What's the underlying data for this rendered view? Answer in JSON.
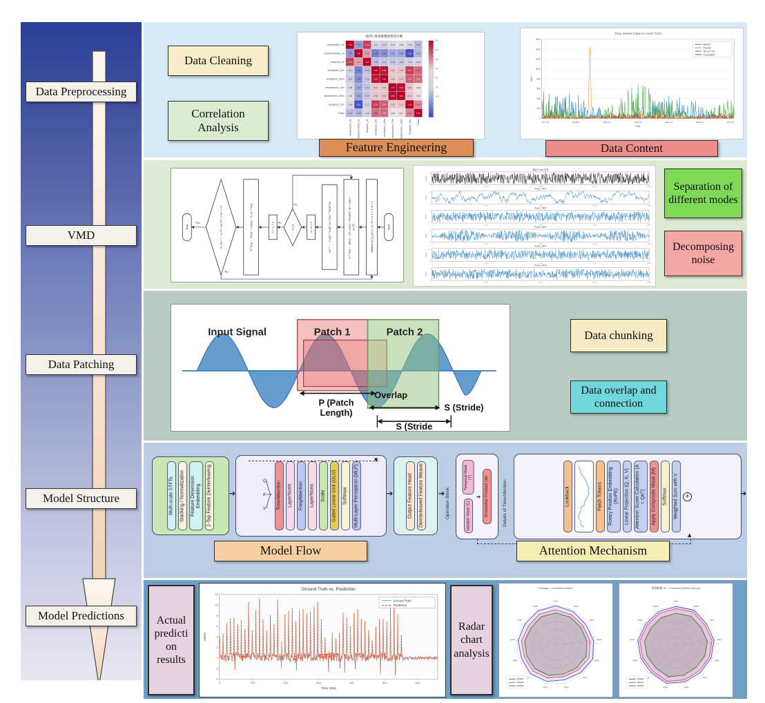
{
  "palette": {
    "row1": "#d7e9f4",
    "row2": "#dde9d2",
    "row3": "#b7cbc2",
    "row4": "#bccee6",
    "row5": "#6f9ec6",
    "cleaning": "#f8edca",
    "correlation": "#daecd2",
    "feature": "#dd8e56",
    "content": "#ee8e8a",
    "separation": "#7ed957",
    "decomposing": "#f3a6a2",
    "chunking": "#f5ecc4",
    "overlap": "#70d7dc",
    "flow_label": "#f8cfa0",
    "attention_label": "#f5eeb4",
    "actual": "#e6d2e0",
    "radar_label": "#e6d2e0",
    "arrow_fill_top": "#fdf7f0",
    "arrow_fill_bottom": "#f6d3ba"
  },
  "sidebar": {
    "stages": [
      "Data Preprocessing",
      "VMD",
      "Data Patching",
      "Model Structure",
      "Model Predictions"
    ]
  },
  "rows": {
    "r1": {
      "cleaning": "Data Cleaning",
      "correlation": "Correlation Analysis",
      "feature": "Feature Engineering",
      "content": "Data Content"
    },
    "r2": {
      "separation": "Separation of different modes",
      "decomposing": "Decomposing noise"
    },
    "r3": {
      "chunking": "Data chunking",
      "overlap": "Data overlap and connection"
    },
    "r4": {
      "flow_label": "Model Flow",
      "attention_label": "Attention Mechanism",
      "operation_label": "Operation Block",
      "details_label": "Details of TimeAttention"
    },
    "r5": {
      "actual": "Actual predicti on results",
      "radar_label": "Radar chart analysis"
    }
  },
  "patch_diagram": {
    "labels": {
      "input_signal": "Input Signal",
      "patch1": "Patch 1",
      "patch2": "Patch 2",
      "overlap": "Overlap",
      "p_len_1": "P (Patch",
      "p_len_2": "Length)",
      "stride_right": "S (Stride)",
      "stride_bottom": "S (Stride"
    },
    "colors": {
      "wave": "#2e75b6",
      "wave_fill": "rgba(62,133,198,0.8)",
      "patch1": "#b85450",
      "patch1_fill": "rgba(228,104,104,0.42)",
      "patch2": "#6a9955",
      "patch2_fill": "rgba(147,196,125,0.5)"
    }
  },
  "vmd_flowchart": {
    "nodes": [
      {
        "shape": "stadium",
        "text": "Start"
      },
      {
        "shape": "rect",
        "text": "Initialize {û¹ₖ}, {ω¹ₖ} = 0, λ̂¹ = 0, n = 1, k = 1"
      },
      {
        "shape": "rect",
        "text": "ûₖⁿ⁺¹(ω) ← [x̂(ω) − Σᵢ≠ₖ ûᵢ(ω) + λ̂ⁿ(ω)/2] / [1 + 2α(ω − ωₖⁿ)²]"
      },
      {
        "shape": "rect",
        "text": "ωₖⁿ⁺¹ ← ∫ ω|ûₖⁿ⁺¹(ω)|² dω / ∫ |ûₖⁿ⁺¹(ω)|² dω"
      },
      {
        "shape": "rect",
        "text": "k = k + 1"
      },
      {
        "shape": "diamond",
        "text": "k ≤ K"
      },
      {
        "shape": "rect",
        "text": "n = n + 1"
      },
      {
        "shape": "rect",
        "text": "λ̂ⁿ⁺¹(ω) ← λ̂ⁿ(ω) + τ (x̂(ω) − Σₖ ûₖⁿ⁺¹(ω))"
      },
      {
        "shape": "diamond",
        "text": "Σₖ ‖ûₖⁿ⁺¹ − ûₖⁿ‖² / ‖ûₖⁿ‖² < ε  &  n > N"
      },
      {
        "shape": "stadium",
        "text": "Stop"
      }
    ],
    "yes_label": "Yes",
    "no_label": "No"
  },
  "model_structure": {
    "stft_group": {
      "bg": "#c9e7b5",
      "boxes": [
        {
          "t": "Multi-scale STFTs",
          "bg": "#cdf2f0"
        },
        {
          "t": "Stacking / Normalization",
          "bg": "#f8f4da"
        },
        {
          "t": "Feature Dimension Embedding",
          "bg": "#cdf2f0"
        },
        {
          "t": "2-Tap Feature Deinterleaving",
          "bg": "#f8f4da"
        }
      ]
    },
    "attn_group": {
      "bg": "#efedfc",
      "qkv": [
        "Q",
        "K",
        "V"
      ],
      "boxes": [
        {
          "t": "TimeAttention",
          "bg": "#f2918c"
        },
        {
          "t": "LayerNorm",
          "bg": "#f8d9e8"
        },
        {
          "t": "FreqAttention",
          "bg": "#b9c8ee"
        },
        {
          "t": "LayerNorm",
          "bg": "#f8d9e8"
        },
        {
          "t": "Scale",
          "bg": "#c8e8a8"
        },
        {
          "t": "Gated Linear Unit (GLU)",
          "bg": "#e3cf4e"
        },
        {
          "t": "Softmax",
          "bg": "#f6f2d0"
        },
        {
          "t": "Multi-Layer Perceptron (MLP)",
          "bg": "#b9c3ea"
        }
      ]
    },
    "output_group": {
      "bg": "#d9f3ee",
      "boxes": [
        {
          "t": "Output Feature Head",
          "bg": "#fbe7d0"
        },
        {
          "t": "Deinterleaved Feature Weave",
          "bg": "#fbe7d0"
        }
      ]
    },
    "mask_group": {
      "bg": "#f4f2fd",
      "masks": [
        {
          "t": "Temporal Mask (T)",
          "bg": "#f3b8d2"
        },
        {
          "t": "Variable Mask (C)",
          "bg": "#f3b8d2"
        }
      ],
      "kron": {
        "t": "Kronecker Product (⊗)",
        "bg": "#f2918c"
      }
    },
    "ta_group": {
      "bg": "#f4f2fd",
      "boxes": [
        {
          "t": "Lookback",
          "bg": "#f5c08a"
        },
        {
          "t": "",
          "bg": "#ffffff",
          "chart": true
        },
        {
          "t": "Patch Tokens",
          "bg": "#f5c08a"
        },
        {
          "t": "Rotary Position Embedding (RoPE)",
          "bg": "#c3cff0"
        },
        {
          "t": "Linear Projection (Q, K, V)",
          "bg": "#c3cff0"
        },
        {
          "t": "Attention Score Calculation (A = QKᵀ)",
          "bg": "#c3cff0"
        },
        {
          "t": "Apply Composite Mask (M)",
          "bg": "#f2918c"
        },
        {
          "t": "Softmax",
          "bg": "#f6f2d0"
        },
        {
          "t": "Weighted Sum with V",
          "bg": "#c3cff0"
        }
      ]
    }
  },
  "chart_data": [
    {
      "id": "correlation-heatmap",
      "type": "heatmap",
      "title": "站点1 各因素相关性热力图",
      "labels": [
        "temperature_2m",
        "relativehumidity_2m",
        "dewpoint_2m",
        "windspeed_10m",
        "windspeed_100m",
        "winddirection_10m",
        "winddirection_100m",
        "windgusts_10m",
        "Power"
      ],
      "matrix": [
        [
          1.0,
          -0.34,
          0.73,
          -0.11,
          -0.13,
          -0.08,
          -0.06,
          -0.09,
          -0.21
        ],
        [
          -0.34,
          1.0,
          0.33,
          -0.43,
          -0.38,
          -0.28,
          -0.29,
          -0.62,
          -0.22
        ],
        [
          0.73,
          0.33,
          1.0,
          -0.19,
          -0.16,
          -0.16,
          -0.16,
          -0.12,
          -0.1
        ],
        [
          -0.11,
          -0.43,
          -0.19,
          1.0,
          0.93,
          0.17,
          0.18,
          0.74,
          0.55
        ],
        [
          -0.13,
          -0.38,
          -0.16,
          0.93,
          1.0,
          0.16,
          0.18,
          0.62,
          0.56
        ],
        [
          -0.08,
          -0.28,
          -0.16,
          0.17,
          0.16,
          1.0,
          0.95,
          0.16,
          0.06
        ],
        [
          -0.06,
          -0.29,
          -0.16,
          0.18,
          0.18,
          0.95,
          1.0,
          0.17,
          0.07
        ],
        [
          -0.09,
          -0.62,
          -0.12,
          0.74,
          0.62,
          0.16,
          0.17,
          1.0,
          0.44
        ],
        [
          -0.21,
          -0.22,
          -0.1,
          0.55,
          0.56,
          0.06,
          0.07,
          0.44,
          1.0
        ]
      ],
      "colorbar_ticks": [
        1.0,
        0.8,
        0.6,
        0.4,
        0.2,
        0.0,
        -0.2
      ],
      "colormap": {
        "low": "#3b4cc0",
        "mid": "#f1ecec",
        "high": "#b40426",
        "domain": [
          -0.65,
          1
        ]
      }
    },
    {
      "id": "tso-timeseries",
      "type": "line",
      "title": "Time Series Data for each TSO",
      "xlabel": "Date",
      "ylabel": "Value",
      "x_ticks": [
        "2017-01",
        "2018-01",
        "2019-01",
        "2020-01",
        "2021-01",
        "2022-01",
        "2023-01"
      ],
      "y_ticks": [
        0,
        200,
        400,
        600,
        800,
        1000,
        1200,
        1400,
        1600
      ],
      "y_max": 1600,
      "series": [
        {
          "name": "50Hertz",
          "color": "#1f77b4",
          "peak": 520,
          "spike_at": null,
          "spike_h": 0
        },
        {
          "name": "Amprion",
          "color": "#ff7f0e",
          "peak": 170,
          "spike_at": 105,
          "spike_h": 1450
        },
        {
          "name": "TenneTTSO",
          "color": "#2ca02c",
          "peak": 690,
          "spike_at": null,
          "spike_h": 0
        },
        {
          "name": "TransnetBW",
          "color": "#d62728",
          "peak": 130,
          "spike_at": null,
          "spike_h": 0
        }
      ]
    },
    {
      "id": "vmd-decomposition",
      "type": "line",
      "x_ticks": [
        0,
        10000,
        20000,
        30000,
        40000
      ],
      "subplots": [
        {
          "title": "原始 Power 信号",
          "ylabel": "Power",
          "color": "#000000",
          "style": "dense"
        },
        {
          "title": "Power_IMF1",
          "ylabel": "IMF1",
          "color": "#1f77b4",
          "style": "smooth"
        },
        {
          "title": "Power_IMF2",
          "ylabel": "IMF2",
          "color": "#1f77b4",
          "style": "noise"
        },
        {
          "title": "Power_IMF3",
          "ylabel": "IMF3",
          "color": "#1f77b4",
          "style": "burst"
        },
        {
          "title": "Power_IMF4",
          "ylabel": "IMF4",
          "color": "#1f77b4",
          "style": "noise"
        },
        {
          "title": "Power_IMF5",
          "ylabel": "IMF5",
          "color": "#1f77b4",
          "style": "noise"
        }
      ]
    },
    {
      "id": "prediction-chart",
      "type": "line",
      "title": "Ground Truth vs. Prediction",
      "xlabel": "Time Step",
      "ylabel": "Value",
      "x_ticks": [
        0,
        100,
        200,
        300,
        400,
        500,
        600
      ],
      "x_max": 660,
      "y_ticks": [
        -4,
        -2,
        0,
        2,
        4,
        6,
        8,
        10,
        12
      ],
      "y_min": -4,
      "y_max": 12,
      "series": [
        {
          "name": "Ground Truth",
          "color": "#74b3e3",
          "style": "solid"
        },
        {
          "name": "Prediction",
          "color": "#ff5a1e",
          "style": "dashed"
        }
      ],
      "note": "spiky periodic series up to step ~560, then flat near 0"
    },
    {
      "id": "radar-average",
      "type": "radar",
      "title": "Average - Combined Metrics",
      "axes": 13,
      "rings": [
        0.2,
        0.4,
        0.6,
        0.8,
        1.0
      ],
      "series": [
        {
          "color": "#5555dd",
          "fill": "rgba(110,110,235,0.15)",
          "values": [
            0.99,
            0.95,
            0.92,
            0.96,
            1.0,
            0.94,
            0.91,
            0.95,
            0.97,
            0.93,
            0.96,
            0.94,
            0.97
          ]
        },
        {
          "color": "#dd5566",
          "fill": "rgba(225,120,150,0.22)",
          "values": [
            0.89,
            0.86,
            0.84,
            0.87,
            0.9,
            0.85,
            0.83,
            0.86,
            0.88,
            0.85,
            0.87,
            0.84,
            0.88
          ]
        },
        {
          "color": "#448844",
          "fill": "rgba(150,150,150,0.38)",
          "values": [
            0.81,
            0.79,
            0.77,
            0.79,
            0.82,
            0.78,
            0.76,
            0.79,
            0.8,
            0.78,
            0.79,
            0.76,
            0.8
          ]
        }
      ]
    },
    {
      "id": "radar-zoom",
      "type": "radar",
      "title": "预测结果 #2 - Combined Metrics (Zoom)",
      "axes": 13,
      "rings": [
        0.2,
        0.4,
        0.6,
        0.8,
        1.0
      ],
      "series": [
        {
          "color": "#5555dd",
          "fill": "rgba(110,110,235,0.15)",
          "values": [
            0.97,
            0.99,
            0.94,
            0.97,
            0.95,
            0.93,
            0.96,
            1.0,
            0.94,
            0.95,
            0.97,
            0.93,
            0.95
          ]
        },
        {
          "color": "#dd5566",
          "fill": "rgba(225,120,150,0.28)",
          "values": [
            0.92,
            0.94,
            0.89,
            0.92,
            0.9,
            0.88,
            0.91,
            0.95,
            0.89,
            0.9,
            0.92,
            0.88,
            0.9
          ]
        },
        {
          "color": "#448844",
          "fill": "rgba(150,150,150,0.38)",
          "values": [
            0.8,
            0.82,
            0.77,
            0.8,
            0.78,
            0.76,
            0.79,
            0.83,
            0.77,
            0.78,
            0.8,
            0.76,
            0.78
          ]
        }
      ]
    }
  ]
}
